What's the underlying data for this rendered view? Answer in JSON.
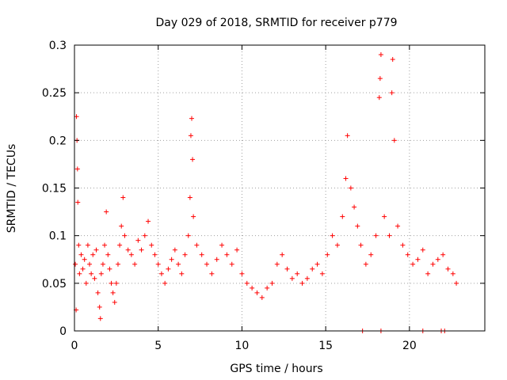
{
  "chart_data": {
    "type": "scatter",
    "title": "Day 029 of 2018, SRMTID for receiver p779",
    "xlabel": "GPS time / hours",
    "ylabel": "SRMTID / TECUs",
    "xlim": [
      0,
      24.5
    ],
    "ylim": [
      0,
      0.3
    ],
    "xticks": [
      0,
      5,
      10,
      15,
      20
    ],
    "yticks": [
      0,
      0.05,
      0.1,
      0.15,
      0.2,
      0.25,
      0.3
    ],
    "ytick_labels": [
      "0",
      "0.05",
      "0.1",
      "0.15",
      "0.2",
      "0.25",
      "0.3"
    ],
    "grid": true,
    "marker": "plus",
    "color": "#ff0000",
    "series": [
      {
        "name": "SRMTID",
        "points": [
          [
            0.05,
            0.07
          ],
          [
            0.1,
            0.022
          ],
          [
            0.12,
            0.225
          ],
          [
            0.15,
            0.2
          ],
          [
            0.18,
            0.17
          ],
          [
            0.2,
            0.135
          ],
          [
            0.25,
            0.09
          ],
          [
            0.3,
            0.06
          ],
          [
            0.4,
            0.08
          ],
          [
            0.5,
            0.065
          ],
          [
            0.6,
            0.075
          ],
          [
            0.7,
            0.05
          ],
          [
            0.8,
            0.09
          ],
          [
            0.9,
            0.07
          ],
          [
            1.0,
            0.06
          ],
          [
            1.1,
            0.08
          ],
          [
            1.2,
            0.055
          ],
          [
            1.3,
            0.085
          ],
          [
            1.4,
            0.04
          ],
          [
            1.5,
            0.025
          ],
          [
            1.55,
            0.013
          ],
          [
            1.6,
            0.06
          ],
          [
            1.7,
            0.07
          ],
          [
            1.8,
            0.09
          ],
          [
            1.9,
            0.125
          ],
          [
            2.0,
            0.08
          ],
          [
            2.1,
            0.065
          ],
          [
            2.2,
            0.05
          ],
          [
            2.3,
            0.04
          ],
          [
            2.4,
            0.03
          ],
          [
            2.5,
            0.05
          ],
          [
            2.6,
            0.07
          ],
          [
            2.7,
            0.09
          ],
          [
            2.8,
            0.11
          ],
          [
            2.9,
            0.14
          ],
          [
            3.0,
            0.1
          ],
          [
            3.2,
            0.085
          ],
          [
            3.4,
            0.08
          ],
          [
            3.6,
            0.07
          ],
          [
            3.8,
            0.095
          ],
          [
            4.0,
            0.085
          ],
          [
            4.2,
            0.1
          ],
          [
            4.4,
            0.115
          ],
          [
            4.6,
            0.09
          ],
          [
            4.8,
            0.08
          ],
          [
            5.0,
            0.07
          ],
          [
            5.2,
            0.06
          ],
          [
            5.4,
            0.05
          ],
          [
            5.6,
            0.065
          ],
          [
            5.8,
            0.075
          ],
          [
            6.0,
            0.085
          ],
          [
            6.2,
            0.07
          ],
          [
            6.4,
            0.06
          ],
          [
            6.6,
            0.08
          ],
          [
            6.8,
            0.1
          ],
          [
            6.9,
            0.14
          ],
          [
            6.95,
            0.205
          ],
          [
            7.0,
            0.223
          ],
          [
            7.05,
            0.18
          ],
          [
            7.1,
            0.12
          ],
          [
            7.3,
            0.09
          ],
          [
            7.6,
            0.08
          ],
          [
            7.9,
            0.07
          ],
          [
            8.2,
            0.06
          ],
          [
            8.5,
            0.075
          ],
          [
            8.8,
            0.09
          ],
          [
            9.1,
            0.08
          ],
          [
            9.4,
            0.07
          ],
          [
            9.7,
            0.085
          ],
          [
            10.0,
            0.06
          ],
          [
            10.3,
            0.05
          ],
          [
            10.6,
            0.045
          ],
          [
            10.9,
            0.04
          ],
          [
            11.2,
            0.035
          ],
          [
            11.5,
            0.045
          ],
          [
            11.8,
            0.05
          ],
          [
            12.1,
            0.07
          ],
          [
            12.4,
            0.08
          ],
          [
            12.7,
            0.065
          ],
          [
            13.0,
            0.055
          ],
          [
            13.3,
            0.06
          ],
          [
            13.6,
            0.05
          ],
          [
            13.9,
            0.055
          ],
          [
            14.2,
            0.065
          ],
          [
            14.5,
            0.07
          ],
          [
            14.8,
            0.06
          ],
          [
            15.1,
            0.08
          ],
          [
            15.4,
            0.1
          ],
          [
            15.7,
            0.09
          ],
          [
            16.0,
            0.12
          ],
          [
            16.2,
            0.16
          ],
          [
            16.3,
            0.205
          ],
          [
            16.5,
            0.15
          ],
          [
            16.7,
            0.13
          ],
          [
            16.9,
            0.11
          ],
          [
            17.1,
            0.09
          ],
          [
            17.4,
            0.07
          ],
          [
            17.7,
            0.08
          ],
          [
            18.0,
            0.1
          ],
          [
            18.2,
            0.245
          ],
          [
            18.25,
            0.265
          ],
          [
            18.3,
            0.29
          ],
          [
            18.5,
            0.12
          ],
          [
            18.8,
            0.1
          ],
          [
            18.95,
            0.25
          ],
          [
            19.0,
            0.285
          ],
          [
            19.1,
            0.2
          ],
          [
            19.3,
            0.11
          ],
          [
            19.6,
            0.09
          ],
          [
            19.9,
            0.08
          ],
          [
            20.2,
            0.07
          ],
          [
            20.5,
            0.075
          ],
          [
            20.8,
            0.085
          ],
          [
            21.1,
            0.06
          ],
          [
            21.4,
            0.07
          ],
          [
            21.7,
            0.075
          ],
          [
            22.0,
            0.08
          ],
          [
            22.3,
            0.065
          ],
          [
            22.6,
            0.06
          ],
          [
            22.8,
            0.05
          ],
          [
            17.2,
            0.0
          ],
          [
            18.3,
            0.0
          ],
          [
            20.8,
            0.0
          ],
          [
            21.9,
            0.0
          ],
          [
            22.1,
            0.0
          ]
        ]
      }
    ]
  }
}
